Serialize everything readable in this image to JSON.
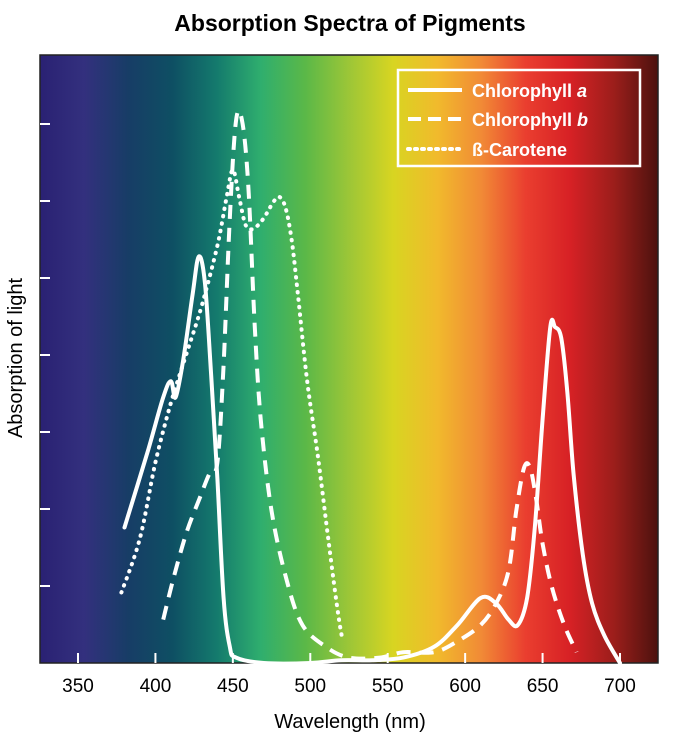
{
  "chart_data": {
    "type": "line",
    "title": "Absorption Spectra of Pigments",
    "xlabel": "Wavelength (nm)",
    "ylabel": "Absorption of light",
    "xlim": [
      325,
      725
    ],
    "ylim": [
      0,
      100
    ],
    "x_ticks": [
      350,
      400,
      450,
      500,
      550,
      600,
      650,
      700
    ],
    "y_tick_count": 7,
    "y_tick_labels_shown": false,
    "background": "visible-light spectrum gradient (violet to deep red)",
    "line_color": "#ffffff",
    "legend_position": "top-right",
    "series": [
      {
        "name": "Chlorophyll",
        "name_suffix": "a",
        "style": "solid",
        "points": [
          [
            380,
            25
          ],
          [
            395,
            39
          ],
          [
            405,
            49
          ],
          [
            410,
            52
          ],
          [
            413,
            49
          ],
          [
            418,
            56
          ],
          [
            424,
            68
          ],
          [
            428,
            75
          ],
          [
            432,
            70
          ],
          [
            436,
            53
          ],
          [
            440,
            34
          ],
          [
            444,
            12
          ],
          [
            448,
            3
          ],
          [
            452,
            1
          ],
          [
            470,
            0
          ],
          [
            500,
            0
          ],
          [
            520,
            0.5
          ],
          [
            540,
            0.5
          ],
          [
            560,
            1
          ],
          [
            580,
            3
          ],
          [
            595,
            7
          ],
          [
            610,
            12
          ],
          [
            620,
            11
          ],
          [
            628,
            8
          ],
          [
            634,
            7
          ],
          [
            640,
            12
          ],
          [
            645,
            25
          ],
          [
            650,
            45
          ],
          [
            655,
            62
          ],
          [
            658,
            62
          ],
          [
            662,
            60
          ],
          [
            666,
            50
          ],
          [
            670,
            35
          ],
          [
            676,
            20
          ],
          [
            682,
            11
          ],
          [
            690,
            5
          ],
          [
            700,
            0
          ]
        ]
      },
      {
        "name": "Chlorophyll",
        "name_suffix": "b",
        "style": "dashed",
        "points": [
          [
            405,
            8
          ],
          [
            412,
            16
          ],
          [
            420,
            24
          ],
          [
            428,
            30
          ],
          [
            435,
            35
          ],
          [
            440,
            37
          ],
          [
            444,
            55
          ],
          [
            448,
            82
          ],
          [
            452,
            100
          ],
          [
            456,
            100
          ],
          [
            460,
            88
          ],
          [
            464,
            63
          ],
          [
            468,
            45
          ],
          [
            475,
            28
          ],
          [
            485,
            15
          ],
          [
            495,
            7
          ],
          [
            510,
            3
          ],
          [
            525,
            1
          ],
          [
            545,
            1
          ],
          [
            560,
            2
          ],
          [
            580,
            2
          ],
          [
            595,
            4
          ],
          [
            610,
            7
          ],
          [
            620,
            11
          ],
          [
            628,
            17
          ],
          [
            633,
            28
          ],
          [
            638,
            36
          ],
          [
            642,
            36
          ],
          [
            646,
            30
          ],
          [
            650,
            22
          ],
          [
            656,
            14
          ],
          [
            664,
            7
          ],
          [
            672,
            2
          ]
        ]
      },
      {
        "name": "ß-Carotene",
        "style": "dotted",
        "points": [
          [
            378,
            13
          ],
          [
            390,
            23
          ],
          [
            400,
            37
          ],
          [
            410,
            48
          ],
          [
            420,
            57
          ],
          [
            430,
            66
          ],
          [
            440,
            77
          ],
          [
            446,
            86
          ],
          [
            450,
            91
          ],
          [
            454,
            86
          ],
          [
            458,
            81
          ],
          [
            462,
            80
          ],
          [
            467,
            81
          ],
          [
            472,
            83
          ],
          [
            476,
            85
          ],
          [
            480,
            86
          ],
          [
            484,
            84
          ],
          [
            488,
            78
          ],
          [
            492,
            68
          ],
          [
            498,
            52
          ],
          [
            505,
            38
          ],
          [
            512,
            22
          ],
          [
            518,
            9
          ],
          [
            521,
            4
          ]
        ]
      }
    ]
  },
  "colors": {
    "spectrum_stops": [
      "#2a2173",
      "#33307e",
      "#173d66",
      "#0e4f63",
      "#147a6d",
      "#2fae6e",
      "#5ab848",
      "#9cc637",
      "#d8d521",
      "#f1ba2c",
      "#f18a36",
      "#ea3e2f",
      "#d72125",
      "#9c1e1b",
      "#4c120e"
    ],
    "line": "#ffffff",
    "text": "#000000"
  }
}
